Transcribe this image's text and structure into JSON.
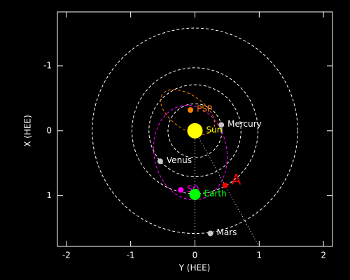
{
  "chart_data": {
    "type": "scatter",
    "xlabel": "Y (HEE)",
    "ylabel": "X (HEE)",
    "xlim": [
      -2.14,
      2.14
    ],
    "ylim": [
      -1.83,
      1.78
    ],
    "y_reversed": true,
    "xticks": [
      -2,
      -1,
      0,
      1,
      2
    ],
    "yticks": [
      -1,
      0,
      1
    ],
    "series": [
      {
        "name": "Sun",
        "color": "#ffff00",
        "label_color": "#ffff00",
        "size": 11,
        "x": [
          0
        ],
        "values": [
          0
        ]
      },
      {
        "name": "Mercury",
        "color": "#c8c8c8",
        "label_color": "#ffffff",
        "size": 4,
        "x": [
          0.41
        ],
        "values": [
          -0.09
        ]
      },
      {
        "name": "PSP",
        "color": "#ff8000",
        "label_color": "#ff8000",
        "size": 4,
        "x": [
          -0.07
        ],
        "values": [
          -0.32
        ]
      },
      {
        "name": "Venus",
        "color": "#c8c8c8",
        "label_color": "#ffffff",
        "size": 4,
        "x": [
          -0.54
        ],
        "values": [
          0.47
        ]
      },
      {
        "name": "SO",
        "color": "#ff00ff",
        "label_color": "#ff00ff",
        "size": 4,
        "x": [
          -0.22
        ],
        "values": [
          0.91
        ]
      },
      {
        "name": "Earth",
        "color": "#00ff00",
        "label_color": "#00ff00",
        "size": 8,
        "x": [
          0
        ],
        "values": [
          0.98
        ]
      },
      {
        "name": "A",
        "color": "#ff0000",
        "label_color": "#ff0000",
        "size": 4,
        "x": [
          0.47
        ],
        "values": [
          0.84
        ]
      },
      {
        "name": "Mars",
        "color": "#c8c8c8",
        "label_color": "#ffffff",
        "size": 4,
        "x": [
          0.24
        ],
        "values": [
          1.58
        ]
      }
    ]
  }
}
